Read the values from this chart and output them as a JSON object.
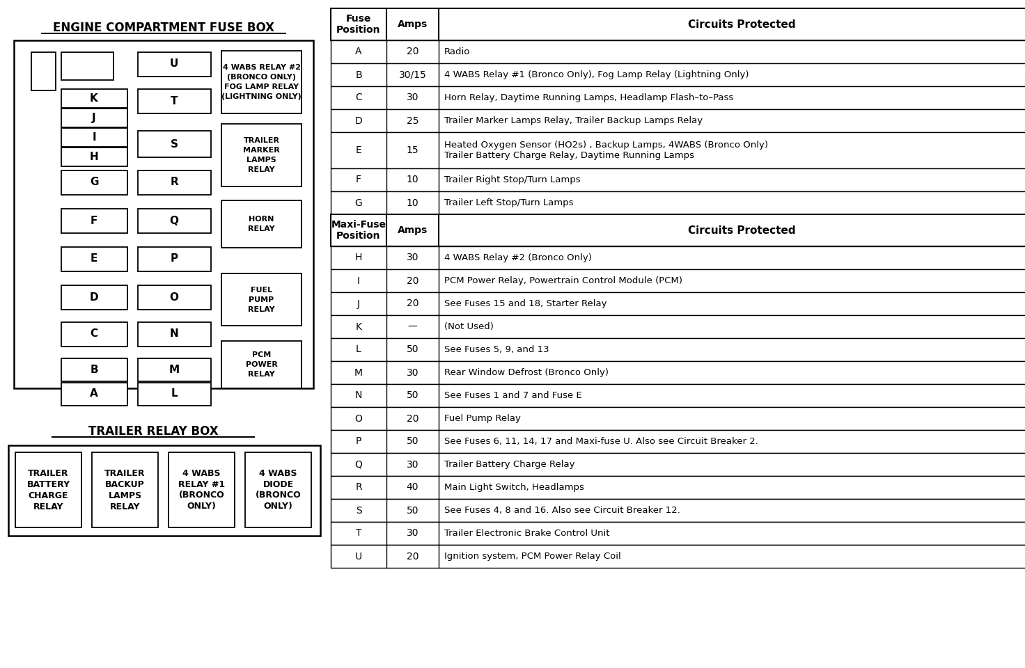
{
  "engine_title": "ENGINE COMPARTMENT FUSE BOX",
  "trailer_title": "TRAILER RELAY BOX",
  "trailer_boxes": [
    [
      "TRAILER",
      "BATTERY",
      "CHARGE",
      "RELAY"
    ],
    [
      "TRAILER",
      "BACKUP",
      "LAMPS",
      "RELAY"
    ],
    [
      "4 WABS",
      "RELAY #1",
      "(BRONCO",
      "ONLY)"
    ],
    [
      "4 WABS",
      "DIODE",
      "(BRONCO",
      "ONLY)"
    ]
  ],
  "fuse_rows": [
    [
      "A",
      "20",
      "Radio"
    ],
    [
      "B",
      "30/15",
      "4 WABS Relay #1 (Bronco Only), Fog Lamp Relay (Lightning Only)"
    ],
    [
      "C",
      "30",
      "Horn Relay, Daytime Running Lamps, Headlamp Flash–to–Pass"
    ],
    [
      "D",
      "25",
      "Trailer Marker Lamps Relay, Trailer Backup Lamps Relay"
    ],
    [
      "E",
      "15",
      "Heated Oxygen Sensor (HO2s) , Backup Lamps, 4WABS (Bronco Only)\nTrailer Battery Charge Relay, Daytime Running Lamps"
    ],
    [
      "F",
      "10",
      "Trailer Right Stop/Turn Lamps"
    ],
    [
      "G",
      "10",
      "Trailer Left Stop/Turn Lamps"
    ]
  ],
  "maxi_rows": [
    [
      "H",
      "30",
      "4 WABS Relay #2 (Bronco Only)"
    ],
    [
      "I",
      "20",
      "PCM Power Relay, Powertrain Control Module (PCM)"
    ],
    [
      "J",
      "20",
      "See Fuses 15 and 18, Starter Relay"
    ],
    [
      "K",
      "—",
      "(Not Used)"
    ],
    [
      "L",
      "50",
      "See Fuses 5, 9, and 13"
    ],
    [
      "M",
      "30",
      "Rear Window Defrost (Bronco Only)"
    ],
    [
      "N",
      "50",
      "See Fuses 1 and 7 and Fuse E"
    ],
    [
      "O",
      "20",
      "Fuel Pump Relay"
    ],
    [
      "P",
      "50",
      "See Fuses 6, 11, 14, 17 and Maxi-fuse U. Also see Circuit Breaker 2."
    ],
    [
      "Q",
      "30",
      "Trailer Battery Charge Relay"
    ],
    [
      "R",
      "40",
      "Main Light Switch, Headlamps"
    ],
    [
      "S",
      "50",
      "See Fuses 4, 8 and 16. Also see Circuit Breaker 12."
    ],
    [
      "T",
      "30",
      "Trailer Electronic Brake Control Unit"
    ],
    [
      "U",
      "20",
      "Ignition system, PCM Power Relay Coil"
    ]
  ]
}
